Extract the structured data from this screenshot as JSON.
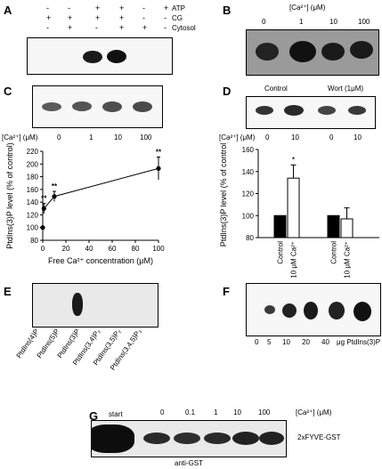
{
  "panels": {
    "A": {
      "label": "A",
      "rows": [
        "ATP",
        "CG",
        "Cytosol"
      ],
      "signs": [
        [
          "-",
          "-",
          "+",
          "+",
          "-",
          "+"
        ],
        [
          "+",
          "+",
          "+",
          "+",
          "-",
          "-"
        ],
        [
          "-",
          "+",
          "-",
          "+",
          "+",
          "-"
        ]
      ]
    },
    "B": {
      "label": "B",
      "conc_title": "[Ca²⁺] (μM)",
      "lanes": [
        "0",
        "1",
        "10",
        "100"
      ]
    },
    "C": {
      "label": "C",
      "conc_prefix": "[Ca²⁺] (μM)",
      "lanes": [
        "0",
        "1",
        "10",
        "100"
      ]
    },
    "D": {
      "label": "D",
      "group_control": "Control",
      "group_wort": "Wort (1μM)",
      "conc_prefix": "[Ca²⁺] (μM)",
      "lanes": [
        "0",
        "10",
        "0",
        "10"
      ]
    },
    "E": {
      "label": "E",
      "lanes": [
        "PtdIns(4)P",
        "PtdIns(5)P",
        "PtdIns(3)P",
        "PtdIns(3,4)P₂",
        "PtdIns(3,5)P₂",
        "PtdIns(3,4,5)P₃"
      ]
    },
    "F": {
      "label": "F",
      "lanes": [
        "0",
        "5",
        "10",
        "20",
        "40"
      ],
      "unit": "μg PtdIns(3)P"
    },
    "G": {
      "label": "G",
      "lanes": [
        "start",
        "0",
        "0.1",
        "1",
        "10",
        "100"
      ],
      "conc_title": "[Ca²⁺] (μM)",
      "band_label": "2xFYVE-GST",
      "antibody": "anti-GST"
    }
  },
  "chart_data": [
    {
      "panel": "C",
      "type": "line",
      "x": [
        0,
        1,
        10,
        100
      ],
      "y": [
        100,
        130,
        149,
        193
      ],
      "error": [
        0,
        8,
        8,
        18
      ],
      "significance": [
        "",
        "**",
        "**",
        "**"
      ],
      "xlabel": "Free Ca²⁺ concentration (μM)",
      "ylabel": "PtdIns(3)P level (% of control)",
      "xticks": [
        "0",
        "20",
        "40",
        "60",
        "80",
        "100"
      ],
      "yticks": [
        "80",
        "100",
        "120",
        "140",
        "160",
        "180",
        "200",
        "220"
      ],
      "xlim": [
        0,
        100
      ],
      "ylim": [
        80,
        220
      ]
    },
    {
      "panel": "D",
      "type": "bar",
      "categories": [
        "Control",
        "10 μM Ca²⁺",
        "Control",
        "10 μM Ca²⁺"
      ],
      "values": [
        100,
        134,
        100,
        97
      ],
      "error": [
        0,
        12,
        0,
        10
      ],
      "significance": [
        "",
        "*",
        "",
        ""
      ],
      "bar_colors": [
        "#000000",
        "#ffffff",
        "#000000",
        "#ffffff"
      ],
      "ylabel": "PtdIns(3)P level (% of control)",
      "yticks": [
        "80",
        "100",
        "120",
        "140",
        "160"
      ],
      "ylim": [
        80,
        160
      ]
    }
  ]
}
